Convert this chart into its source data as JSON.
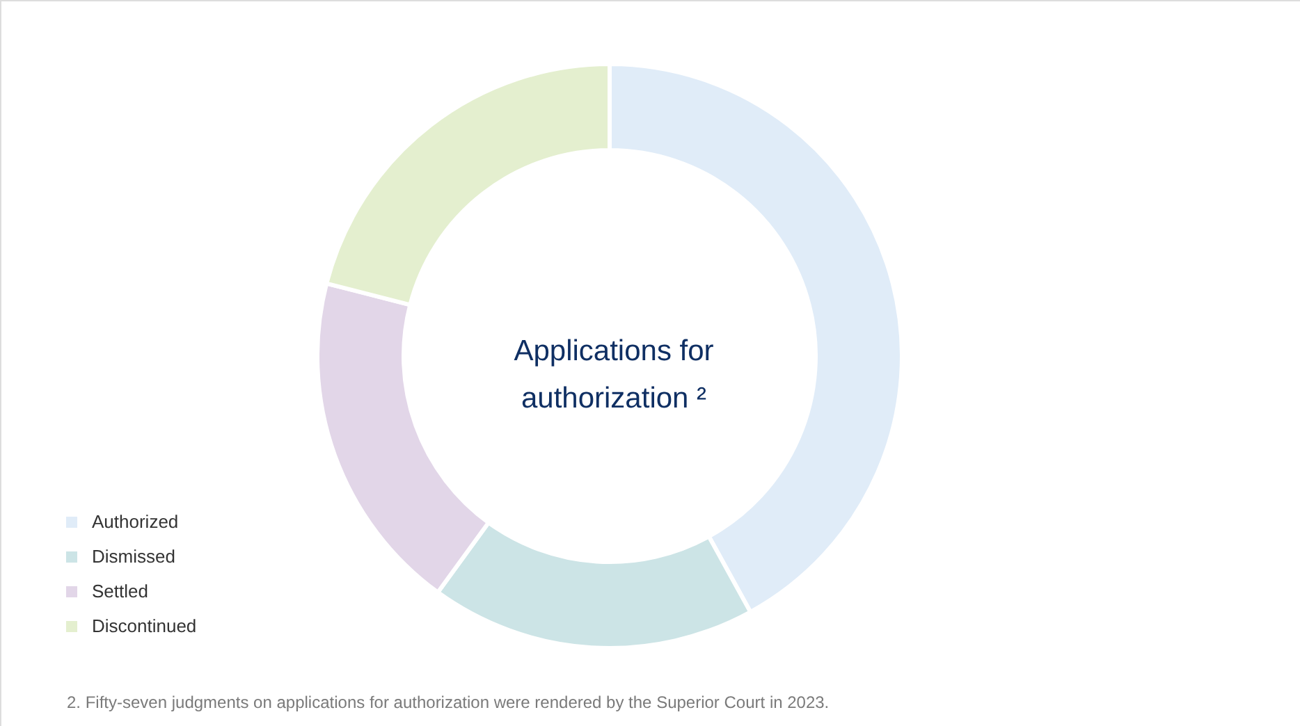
{
  "chart_data": {
    "type": "donut",
    "title": "Applications for authorization ²",
    "categories": [
      "Authorized",
      "Dismissed",
      "Settled",
      "Discontinued"
    ],
    "values": [
      42,
      18,
      19,
      21
    ],
    "colors": [
      "#e0ecf8",
      "#cce4e6",
      "#e2d6e8",
      "#e4efcf"
    ],
    "legend": "bottom left",
    "annotations": [
      "2. Fifty-seven judgments on applications for authorization were rendered by the Superior Court in 2023."
    ]
  }
}
